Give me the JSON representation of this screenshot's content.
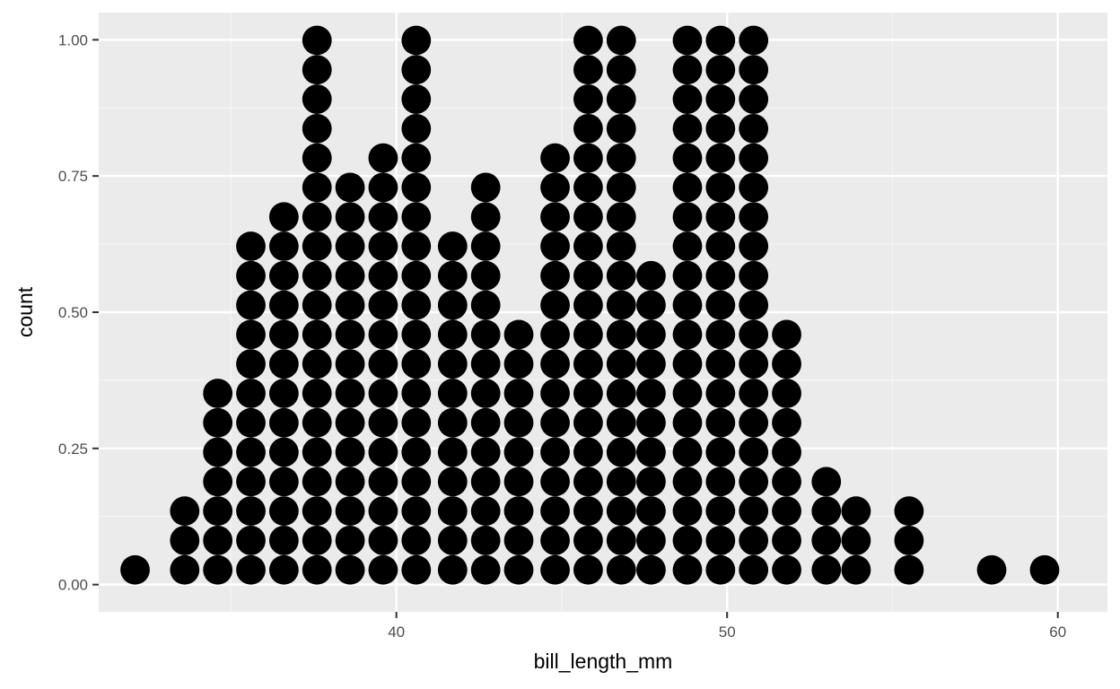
{
  "chart_data": {
    "type": "dotplot",
    "xlabel": "bill_length_mm",
    "ylabel": "count",
    "xlim": [
      31.0,
      61.5
    ],
    "ylim": [
      -0.05,
      1.05
    ],
    "x_ticks": [
      40,
      50,
      60
    ],
    "x_tick_labels": [
      "40",
      "50",
      "60"
    ],
    "y_ticks": [
      0.0,
      0.25,
      0.5,
      0.75,
      1.0
    ],
    "y_tick_labels": [
      "0.00",
      "0.25",
      "0.50",
      "0.75",
      "1.00"
    ],
    "grid": true,
    "stack_step": 0.054,
    "stacks": [
      {
        "x": 32.1,
        "count": 1
      },
      {
        "x": 33.6,
        "count": 3
      },
      {
        "x": 34.6,
        "count": 7
      },
      {
        "x": 35.6,
        "count": 12
      },
      {
        "x": 36.6,
        "count": 13
      },
      {
        "x": 37.6,
        "count": 19
      },
      {
        "x": 38.6,
        "count": 14
      },
      {
        "x": 39.6,
        "count": 15
      },
      {
        "x": 40.6,
        "count": 19
      },
      {
        "x": 41.7,
        "count": 12
      },
      {
        "x": 42.7,
        "count": 14
      },
      {
        "x": 43.7,
        "count": 9
      },
      {
        "x": 44.8,
        "count": 15
      },
      {
        "x": 45.8,
        "count": 19
      },
      {
        "x": 46.8,
        "count": 19
      },
      {
        "x": 47.7,
        "count": 11
      },
      {
        "x": 48.8,
        "count": 19
      },
      {
        "x": 49.8,
        "count": 19
      },
      {
        "x": 50.8,
        "count": 19
      },
      {
        "x": 51.8,
        "count": 9
      },
      {
        "x": 53.0,
        "count": 4
      },
      {
        "x": 53.9,
        "count": 3
      },
      {
        "x": 55.5,
        "count": 3
      },
      {
        "x": 58.0,
        "count": 1
      },
      {
        "x": 59.6,
        "count": 1
      }
    ],
    "colors": {
      "panel_background": "#ebebeb",
      "grid_major": "#ffffff",
      "grid_minor": "#f5f5f5",
      "dot": "#000000",
      "tick_text": "#4d4d4d",
      "title_text": "#000000"
    }
  }
}
